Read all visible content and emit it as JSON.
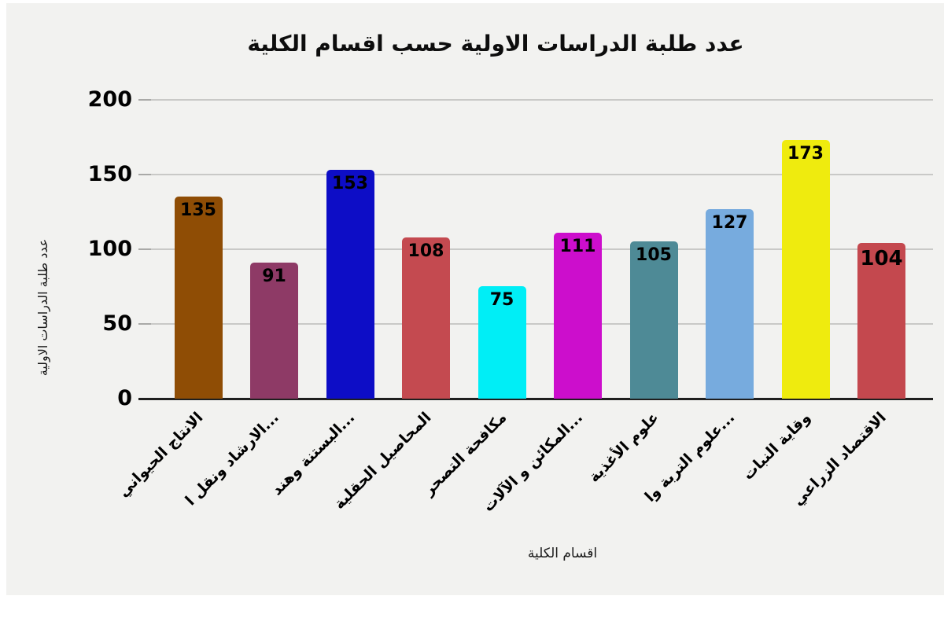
{
  "title": "عدد طلبة الدراسات الاولية حسب اقسام الكلية",
  "colors": {
    "panel_background": "#f2f2f0",
    "gridline": "#c9c9c7",
    "axis_line": "#1f1f1f",
    "text": "#000000"
  },
  "chart_data": {
    "type": "bar",
    "title": "عدد طلبة الدراسات الاولية حسب اقسام الكلية",
    "xlabel": "اقسام الكلية",
    "ylabel": "عدد طلبة الدراسات الاولية",
    "ylim": [
      0,
      200
    ],
    "yticks": [
      0,
      50,
      100,
      150,
      200
    ],
    "grid": true,
    "legend": false,
    "text_direction": "rtl",
    "categories": [
      "الانتاج الحيواني",
      "...الارشاد ونقل ا",
      "...البستنة وهند",
      "المحاصيل الحقلية",
      "مكافحة التصحر",
      "...المكائن و الآلات",
      "علوم الأغذية",
      "...علوم التربة وا",
      "وقاية النبات",
      "الاقتصاد الزراعي"
    ],
    "values": [
      135,
      91,
      153,
      108,
      75,
      111,
      105,
      127,
      173,
      104
    ],
    "data_labels": [
      "135",
      "91",
      "153",
      "108",
      "75",
      "111",
      "105",
      "127",
      "173",
      "104"
    ],
    "bar_colors": [
      "#8f4d05",
      "#8e3a66",
      "#0d0dc6",
      "#c44a50",
      "#00eef6",
      "#cc0ecc",
      "#4e8a96",
      "#77abde",
      "#efeb0e",
      "#c4484e"
    ],
    "emphasized_label_index": 9
  }
}
